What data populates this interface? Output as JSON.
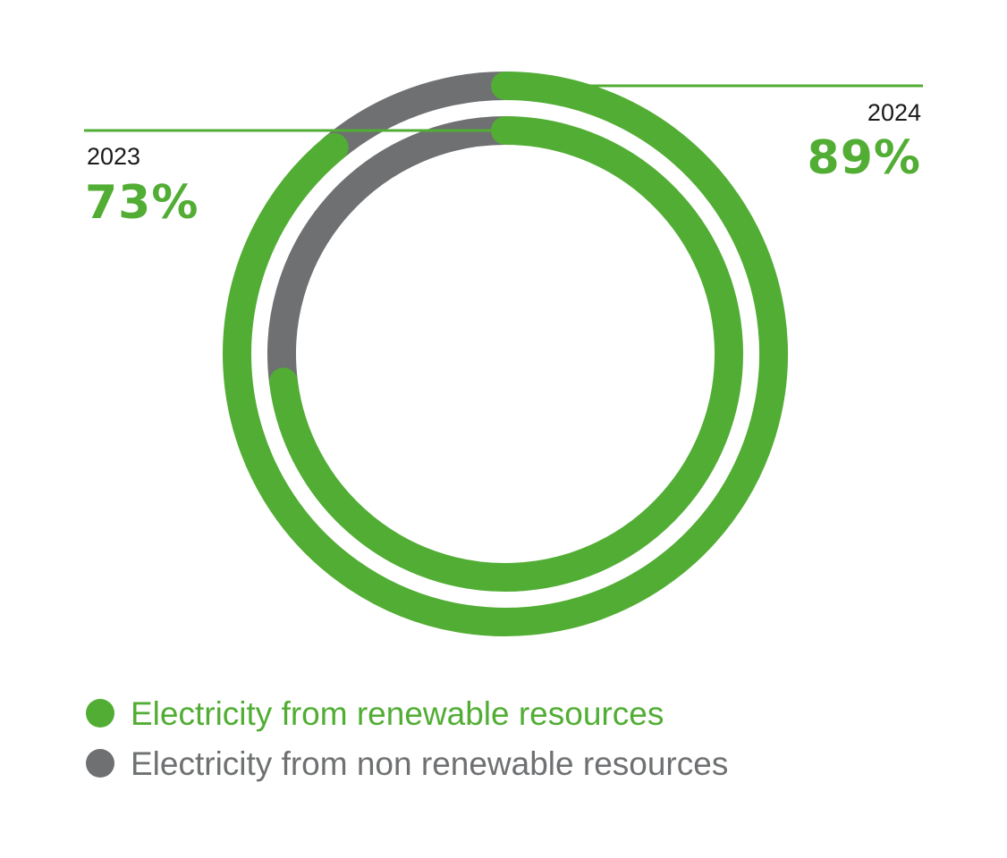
{
  "colors": {
    "renewable": "#52ad34",
    "non_renewable": "#6e7072"
  },
  "chart_data": {
    "type": "pie",
    "categories": [
      "2024",
      "2023"
    ],
    "series": [
      {
        "name": "Electricity from renewable resources",
        "values": [
          89,
          73
        ]
      },
      {
        "name": "Electricity from non renewable resources",
        "values": [
          11,
          27
        ]
      }
    ],
    "labels": {
      "2024": {
        "year": "2024",
        "percent": "89%"
      },
      "2023": {
        "year": "2023",
        "percent": "73%"
      }
    },
    "legend": {
      "placement": "bottom",
      "items": [
        {
          "label": "Electricity from renewable resources",
          "color": "#52ad34"
        },
        {
          "label": "Electricity from non renewable resources",
          "color": "#6e7072"
        }
      ]
    }
  }
}
